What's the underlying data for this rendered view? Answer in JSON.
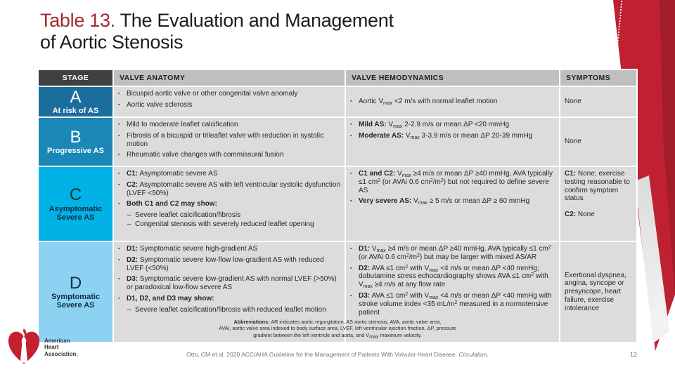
{
  "title": {
    "prefix": "Table 13.",
    "rest": " The Evaluation and Management",
    "line2": "of Aortic Stenosis"
  },
  "colors": {
    "title_red": "#9e2b2e",
    "ribbon_red": "#bf2032",
    "ribbon_dark_red": "#a31c2a",
    "header_dark": "#404040",
    "header_gray": "#bfbfbf",
    "cell_gray": "#dcdcdc",
    "stage_a": "#1b6d9e",
    "stage_b": "#1a87b6",
    "stage_c": "#00b2e6",
    "stage_d": "#8ed2f3"
  },
  "table": {
    "headers": [
      "STAGE",
      "VALVE ANATOMY",
      "VALVE HEMODYNAMICS",
      "SYMPTOMS"
    ],
    "rows": [
      {
        "stage_letter": "A",
        "stage_label": "At risk of AS",
        "stage_bg": "#1b6d9e",
        "stage_fg": "#ffffff",
        "hemo_vcenter": true,
        "symptoms_vcenter": true,
        "anatomy": [
          {
            "marker": "▪",
            "segments": [
              {
                "text": "Bicuspid aortic valve or other congenital valve anomaly"
              }
            ]
          },
          {
            "marker": "▪",
            "segments": [
              {
                "text": "Aortic valve sclerosis"
              }
            ]
          }
        ],
        "hemodynamics": [
          {
            "marker": "▪",
            "segments": [
              {
                "text": "Aortic V"
              },
              {
                "text": "max",
                "sub": true
              },
              {
                "text": " <2 m/s with normal leaflet motion"
              }
            ]
          }
        ],
        "symptoms": [
          {
            "segments": [
              {
                "text": "None"
              }
            ]
          }
        ]
      },
      {
        "stage_letter": "B",
        "stage_label": "Progressive AS",
        "stage_bg": "#1a87b6",
        "stage_fg": "#ffffff",
        "symptoms_vcenter": true,
        "anatomy": [
          {
            "marker": "▪",
            "segments": [
              {
                "text": "Mild to moderate leaflet calcification"
              }
            ]
          },
          {
            "marker": "▪",
            "segments": [
              {
                "text": "Fibrosis of a bicuspid or trileaflet valve with reduction in systolic motion"
              }
            ]
          },
          {
            "marker": "▪",
            "segments": [
              {
                "text": "Rheumatic valve changes with commissural fusion"
              }
            ]
          }
        ],
        "hemodynamics": [
          {
            "marker": "▪",
            "segments": [
              {
                "text": "Mild AS:",
                "bold": true
              },
              {
                "text": " V"
              },
              {
                "text": "max",
                "sub": true
              },
              {
                "text": " 2-2.9 m/s or mean ΔP <20 mmHg"
              }
            ]
          },
          {
            "marker": "▪",
            "segments": [
              {
                "text": "Moderate AS:",
                "bold": true
              },
              {
                "text": " V"
              },
              {
                "text": "max",
                "sub": true
              },
              {
                "text": " 3-3.9 m/s or mean ΔP 20-39 mmHg"
              }
            ]
          }
        ],
        "symptoms": [
          {
            "segments": [
              {
                "text": "None"
              }
            ]
          }
        ]
      },
      {
        "stage_letter": "C",
        "stage_label": "Asymptomatic Severe AS",
        "stage_bg": "#00b2e6",
        "stage_fg": "#0e2f45",
        "anatomy": [
          {
            "marker": "▪",
            "segments": [
              {
                "text": "C1:",
                "bold": true
              },
              {
                "text": " Asymptomatic severe AS"
              }
            ]
          },
          {
            "marker": "▪",
            "segments": [
              {
                "text": "C2:",
                "bold": true
              },
              {
                "text": " Asymptomatic severe AS with left ventricular systolic dysfunction (LVEF <50%)"
              }
            ]
          },
          {
            "marker": "▪",
            "segments": [
              {
                "text": "Both C1 and C2 may show:",
                "bold": true
              }
            ]
          },
          {
            "marker": "–",
            "dash": true,
            "segments": [
              {
                "text": "Severe leaflet calcification/fibrosis"
              }
            ]
          },
          {
            "marker": "–",
            "dash": true,
            "segments": [
              {
                "text": "Congenital stenosis with severely reduced leaflet opening"
              }
            ]
          }
        ],
        "hemodynamics": [
          {
            "marker": "▪",
            "segments": [
              {
                "text": "C1 and C2:",
                "bold": true
              },
              {
                "text": " V"
              },
              {
                "text": "max",
                "sub": true
              },
              {
                "text": " ≥4 m/s or mean ΔP ≥40 mmHg, AVA typically ≤1 cm"
              },
              {
                "text": "2",
                "sup": true
              },
              {
                "text": " (or AVAi 0.6 cm"
              },
              {
                "text": "2",
                "sup": true
              },
              {
                "text": "/m"
              },
              {
                "text": "2",
                "sup": true
              },
              {
                "text": ") but not required to define severe AS"
              }
            ]
          },
          {
            "marker": "▪",
            "segments": [
              {
                "text": "Very severe AS:",
                "bold": true
              },
              {
                "text": " V"
              },
              {
                "text": "max",
                "sub": true
              },
              {
                "text": " ≥ 5 m/s or mean ΔP ≥ 60 mmHg"
              }
            ]
          }
        ],
        "symptoms": [
          {
            "segments": [
              {
                "text": "C1:",
                "bold": true
              },
              {
                "text": " None; exercise testing reasonable to confirm symptom status"
              }
            ]
          },
          {
            "gap_before": true,
            "segments": [
              {
                "text": "C2:",
                "bold": true
              },
              {
                "text": " None"
              }
            ]
          }
        ]
      },
      {
        "stage_letter": "D",
        "stage_label": "Symptomatic Severe AS",
        "stage_bg": "#8ed2f3",
        "stage_fg": "#0e2f45",
        "symptoms_vcenter": true,
        "anatomy": [
          {
            "marker": "▪",
            "segments": [
              {
                "text": "D1:",
                "bold": true
              },
              {
                "text": " Symptomatic severe high-gradient AS"
              }
            ]
          },
          {
            "marker": "▪",
            "segments": [
              {
                "text": "D2:",
                "bold": true
              },
              {
                "text": " Symptomatic severe low-flow low-gradient AS with reduced LVEF (<50%)"
              }
            ]
          },
          {
            "marker": "▪",
            "segments": [
              {
                "text": "D3:",
                "bold": true
              },
              {
                "text": " Symptomatic severe low-gradient AS with normal LVEF (>50%) or paradoxical low-flow severe AS"
              }
            ]
          },
          {
            "marker": "▪",
            "segments": [
              {
                "text": "D1, D2, and D3 may show:",
                "bold": true
              }
            ]
          },
          {
            "marker": "–",
            "dash": true,
            "segments": [
              {
                "text": "Severe leaflet calcification/fibrosis with reduced leaflet motion"
              }
            ]
          }
        ],
        "hemodynamics": [
          {
            "marker": "▪",
            "segments": [
              {
                "text": "D1:",
                "bold": true
              },
              {
                "text": " V"
              },
              {
                "text": "max",
                "sub": true
              },
              {
                "text": " ≥4 m/s or mean ΔP ≥40 mmHg, AVA typically ≤1 cm"
              },
              {
                "text": "2",
                "sup": true
              },
              {
                "text": " (or AVAi 0.6 cm"
              },
              {
                "text": "2",
                "sup": true
              },
              {
                "text": "/m"
              },
              {
                "text": "2",
                "sup": true
              },
              {
                "text": ") but may be larger with mixed AS/AR"
              }
            ]
          },
          {
            "marker": "▪",
            "segments": [
              {
                "text": "D2:",
                "bold": true
              },
              {
                "text": " AVA ≤1 cm"
              },
              {
                "text": "2",
                "sup": true
              },
              {
                "text": " with V"
              },
              {
                "text": "max",
                "sub": true
              },
              {
                "text": " <4 m/s or mean ΔP <40 mmHg; dobutamine stress echocardiography shows AVA ≤1 cm"
              },
              {
                "text": "2",
                "sup": true
              },
              {
                "text": " with V"
              },
              {
                "text": "max",
                "sub": true
              },
              {
                "text": " ≥4 m/s at any flow rate"
              }
            ]
          },
          {
            "marker": "▪",
            "segments": [
              {
                "text": "D3:",
                "bold": true
              },
              {
                "text": " AVA ≤1 cm"
              },
              {
                "text": "2",
                "sup": true
              },
              {
                "text": " with V"
              },
              {
                "text": "max",
                "sub": true
              },
              {
                "text": " <4 m/s or mean ΔP <40 mmHg with stroke volume index <35 mL/m"
              },
              {
                "text": "2",
                "sup": true
              },
              {
                "text": " measured in a normotensive patient"
              }
            ]
          }
        ],
        "symptoms": [
          {
            "segments": [
              {
                "text": "Exertional dyspnea, angina, syncope or presyncope, heart failure, exercise intolerance"
              }
            ]
          }
        ]
      }
    ]
  },
  "abbreviations": {
    "lines": [
      [
        {
          "text": "Abbreviations:",
          "bold": true
        },
        {
          "text": " AR indicates aortic regurgitation, AS aortic stenosis, AVA, aortic valve area,"
        }
      ],
      [
        {
          "text": "AVAi, aortic valve area indexed to body surface area, LVEF, left ventricular ejection fraction, ΔP, pressure"
        }
      ],
      [
        {
          "text": "gradient between the left ventricle and aorta, and V"
        },
        {
          "text": "max",
          "sub": true
        },
        {
          "text": " maximum velocity."
        }
      ]
    ]
  },
  "footer": {
    "citation": [
      {
        "text": "Otto, CM et al. 2020 ACC/AHA Guideline for the Management of Patients With Valvular Heart Disease. "
      },
      {
        "text": "Circulation.",
        "italic": true
      }
    ],
    "page_number": "12"
  },
  "logo": {
    "line1": "American",
    "line2": "Heart",
    "line3": "Association."
  }
}
